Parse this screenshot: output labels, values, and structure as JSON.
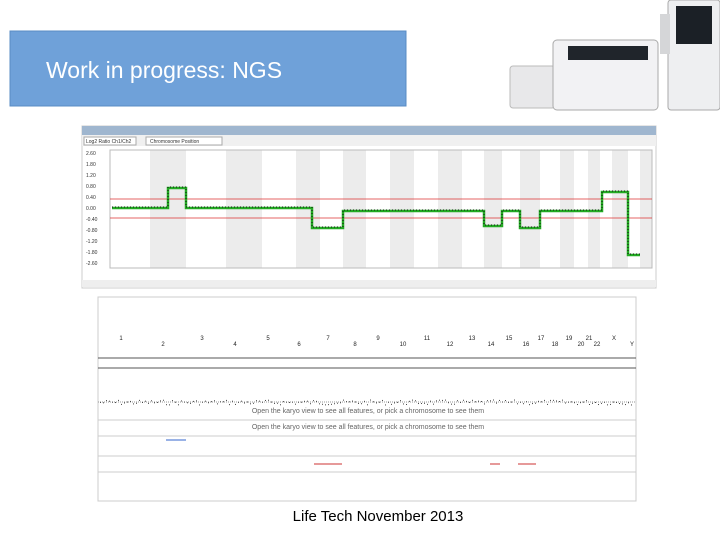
{
  "header": {
    "title": "Work in progress: NGS"
  },
  "plot_panel": {
    "dropdowns": [
      "Log2 Ratio Ch1/Ch2",
      "Chromosome Position"
    ],
    "y_labels": [
      "2.60",
      "1.80",
      "1.20",
      "0.80",
      "0.40",
      "0.00",
      "-0.40",
      "-0.80",
      "-1.20",
      "-1.80",
      "-2.60"
    ]
  },
  "karyo_panel": {
    "chromosomes_top": [
      "1",
      "3",
      "5",
      "7",
      "9",
      "11",
      "13",
      "15",
      "17",
      "19",
      "21",
      "X"
    ],
    "chromosomes_bottom": [
      "2",
      "4",
      "6",
      "8",
      "10",
      "12",
      "14",
      "16",
      "18",
      "20",
      "22",
      "Y"
    ],
    "messages": [
      "Open the karyo view to see all features, or pick a chromosome to see them",
      "Open the karyo view to see all features, or pick a chromosome to see them"
    ]
  },
  "footer": {
    "text": "Life Tech November 2013"
  }
}
